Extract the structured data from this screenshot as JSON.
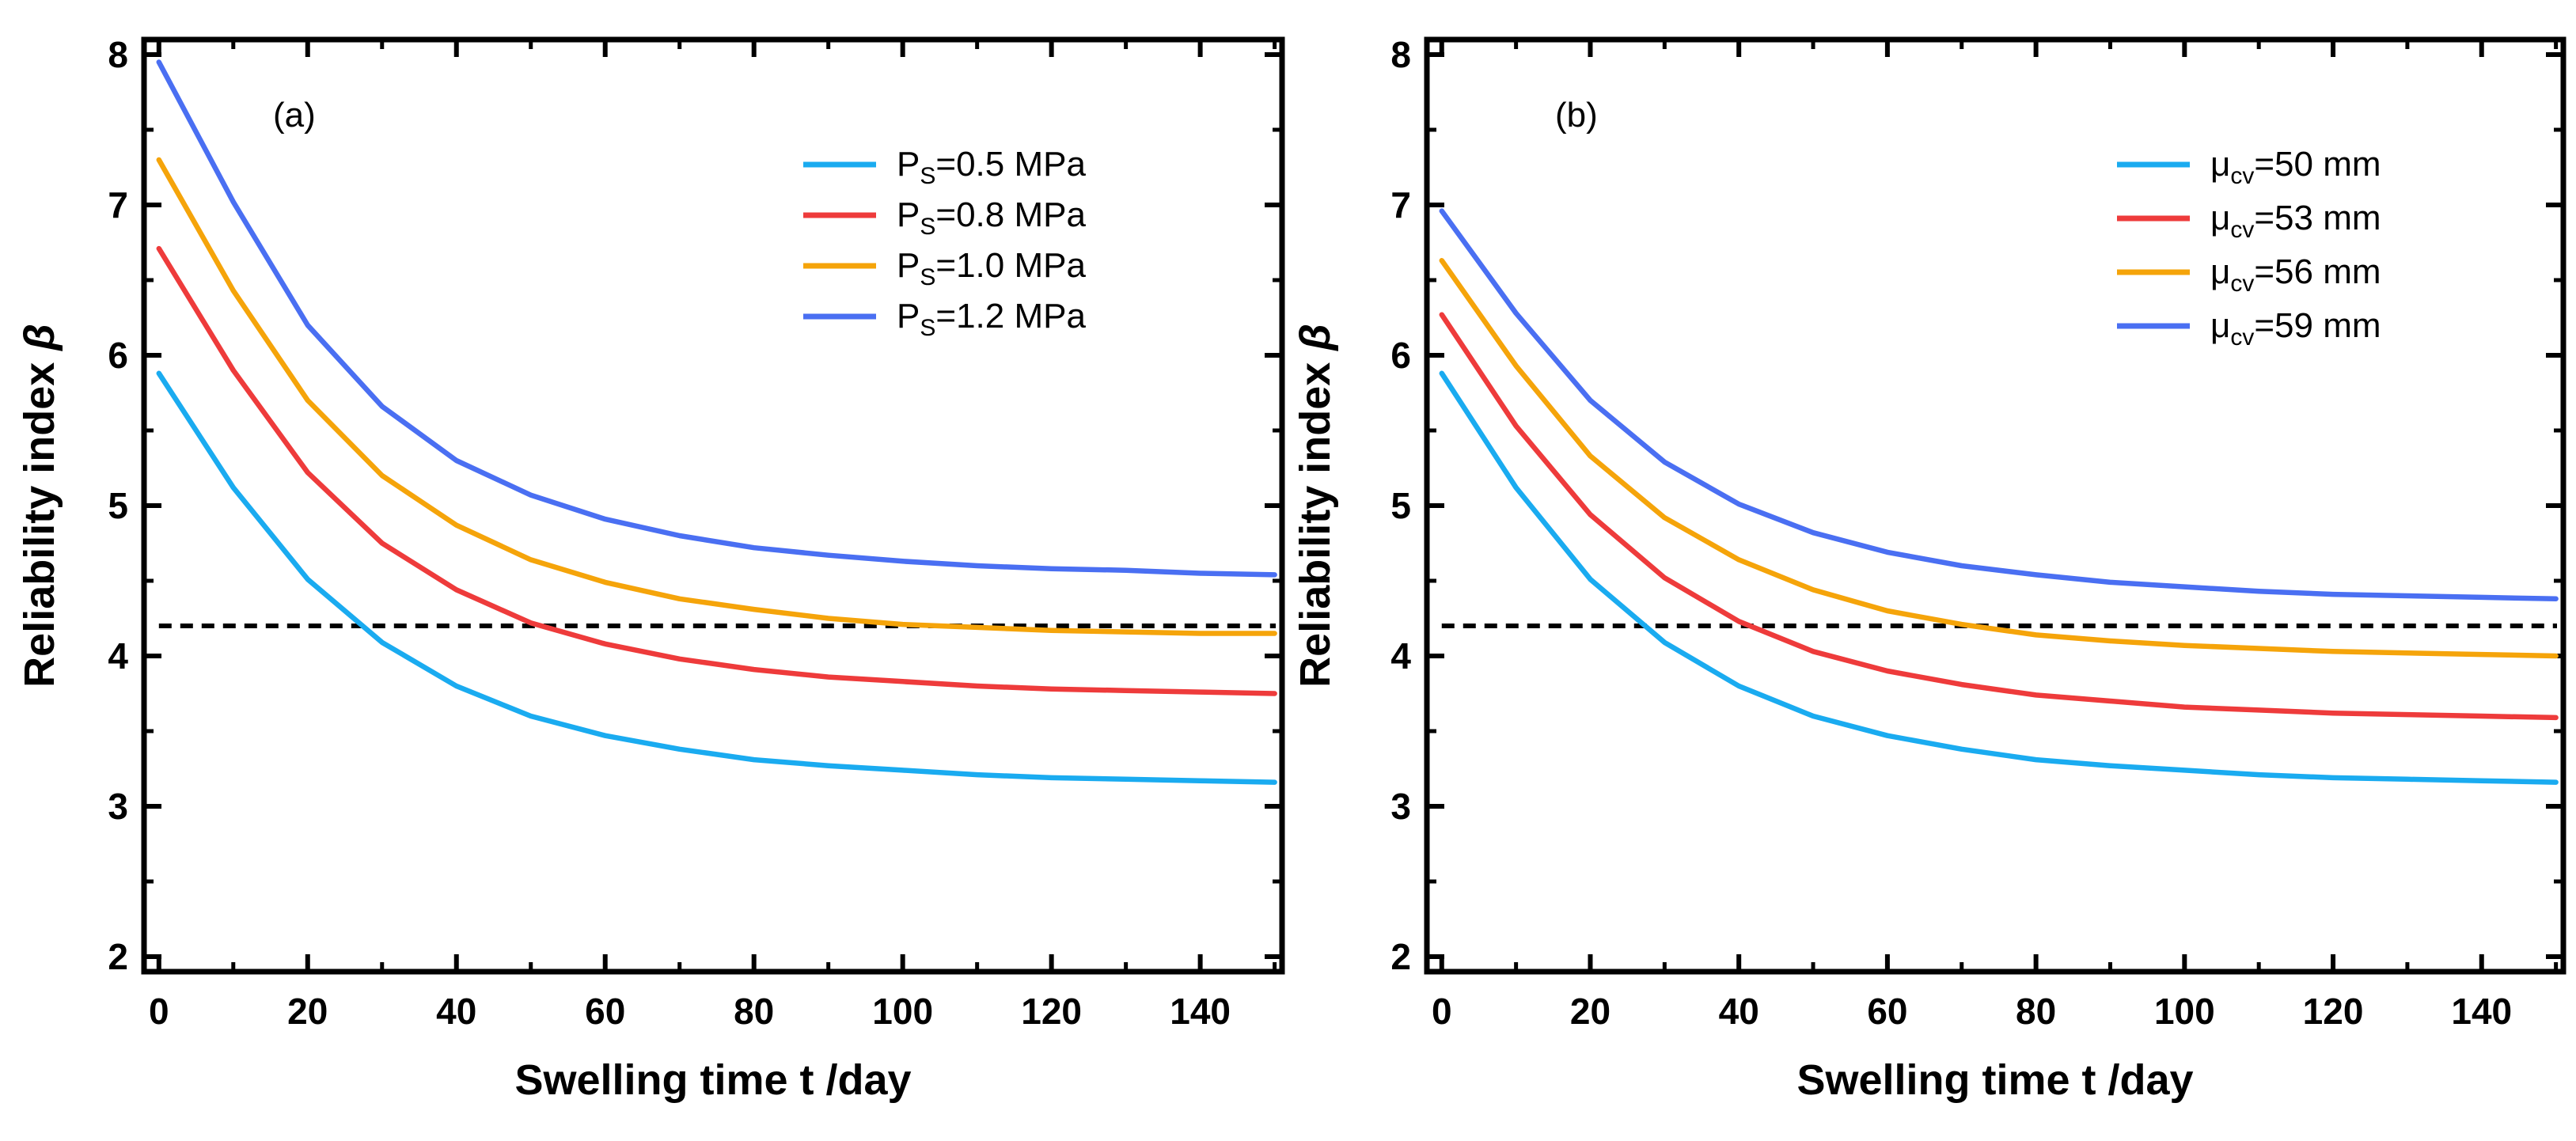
{
  "chart_data": [
    {
      "type": "line",
      "panel_label": "(a)",
      "xlabel": "Swelling time t /day",
      "ylabel": "Reliability index",
      "ylabel_symbol": "β",
      "xlim": [
        -2,
        151
      ],
      "ylim": [
        1.9,
        8.1
      ],
      "xticks": [
        0,
        20,
        40,
        60,
        80,
        100,
        120,
        140
      ],
      "yticks": [
        2,
        3,
        4,
        5,
        6,
        7,
        8
      ],
      "xtick_labels": [
        "0",
        "20",
        "40",
        "60",
        "80",
        "100",
        "120",
        "140"
      ],
      "ytick_labels": [
        "2",
        "3",
        "4",
        "5",
        "6",
        "7",
        "8"
      ],
      "legend_position": "top-right",
      "threshold": {
        "y": 4.2,
        "style": "dashed",
        "color": "#000000"
      },
      "x": [
        0,
        10,
        20,
        30,
        40,
        50,
        60,
        70,
        80,
        90,
        100,
        110,
        120,
        130,
        140,
        150
      ],
      "series": [
        {
          "name": "PS=0.5 MPa",
          "label_main": "P",
          "label_sub": "S",
          "label_rest": "=0.5 MPa",
          "color": "#1aabf0",
          "values": [
            5.88,
            5.12,
            4.51,
            4.09,
            3.8,
            3.6,
            3.47,
            3.38,
            3.31,
            3.27,
            3.24,
            3.21,
            3.19,
            3.18,
            3.17,
            3.16
          ]
        },
        {
          "name": "PS=0.8 MPa",
          "label_main": "P",
          "label_sub": "S",
          "label_rest": "=0.8 MPa",
          "color": "#ee3b3b",
          "values": [
            6.71,
            5.9,
            5.22,
            4.75,
            4.44,
            4.22,
            4.08,
            3.98,
            3.91,
            3.86,
            3.83,
            3.8,
            3.78,
            3.77,
            3.76,
            3.75
          ]
        },
        {
          "name": "PS=1.0 MPa",
          "label_main": "P",
          "label_sub": "S",
          "label_rest": "=1.0 MPa",
          "color": "#f5a40a",
          "values": [
            7.3,
            6.43,
            5.7,
            5.2,
            4.87,
            4.64,
            4.49,
            4.38,
            4.31,
            4.25,
            4.21,
            4.19,
            4.17,
            4.16,
            4.15,
            4.15
          ]
        },
        {
          "name": "PS=1.2 MPa",
          "label_main": "P",
          "label_sub": "S",
          "label_rest": "=1.2 MPa",
          "color": "#4a6ff2",
          "values": [
            7.95,
            7.02,
            6.2,
            5.66,
            5.3,
            5.07,
            4.91,
            4.8,
            4.72,
            4.67,
            4.63,
            4.6,
            4.58,
            4.57,
            4.55,
            4.54
          ]
        }
      ]
    },
    {
      "type": "line",
      "panel_label": "(b)",
      "xlabel": "Swelling time t /day",
      "ylabel": "Reliability index",
      "ylabel_symbol": "β",
      "xlim": [
        -2,
        151
      ],
      "ylim": [
        1.9,
        8.1
      ],
      "xticks": [
        0,
        20,
        40,
        60,
        80,
        100,
        120,
        140
      ],
      "yticks": [
        2,
        3,
        4,
        5,
        6,
        7,
        8
      ],
      "xtick_labels": [
        "0",
        "20",
        "40",
        "60",
        "80",
        "100",
        "120",
        "140"
      ],
      "ytick_labels": [
        "2",
        "3",
        "4",
        "5",
        "6",
        "7",
        "8"
      ],
      "legend_position": "top-right",
      "threshold": {
        "y": 4.2,
        "style": "dashed",
        "color": "#000000"
      },
      "x": [
        0,
        10,
        20,
        30,
        40,
        50,
        60,
        70,
        80,
        90,
        100,
        110,
        120,
        130,
        140,
        150
      ],
      "series": [
        {
          "name": "μcv=50 mm",
          "label_main": "μ",
          "label_sub": "cv",
          "label_rest": "=50 mm",
          "color": "#1aabf0",
          "values": [
            5.88,
            5.12,
            4.51,
            4.09,
            3.8,
            3.6,
            3.47,
            3.38,
            3.31,
            3.27,
            3.24,
            3.21,
            3.19,
            3.18,
            3.17,
            3.16
          ]
        },
        {
          "name": "μcv=53 mm",
          "label_main": "μ",
          "label_sub": "cv",
          "label_rest": "=53 mm",
          "color": "#ee3b3b",
          "values": [
            6.27,
            5.53,
            4.94,
            4.52,
            4.23,
            4.03,
            3.9,
            3.81,
            3.74,
            3.7,
            3.66,
            3.64,
            3.62,
            3.61,
            3.6,
            3.59
          ]
        },
        {
          "name": "μcv=56 mm",
          "label_main": "μ",
          "label_sub": "cv",
          "label_rest": "=56 mm",
          "color": "#f5a40a",
          "values": [
            6.63,
            5.93,
            5.33,
            4.92,
            4.64,
            4.44,
            4.3,
            4.21,
            4.14,
            4.1,
            4.07,
            4.05,
            4.03,
            4.02,
            4.01,
            4.0
          ]
        },
        {
          "name": "μcv=59 mm",
          "label_main": "μ",
          "label_sub": "cv",
          "label_rest": "=59 mm",
          "color": "#4a6ff2",
          "values": [
            6.96,
            6.28,
            5.7,
            5.29,
            5.01,
            4.82,
            4.69,
            4.6,
            4.54,
            4.49,
            4.46,
            4.43,
            4.41,
            4.4,
            4.39,
            4.38
          ]
        }
      ]
    }
  ]
}
